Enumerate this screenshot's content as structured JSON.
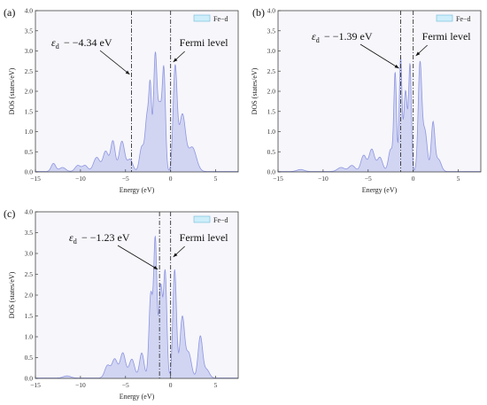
{
  "chart_data": [
    {
      "type": "area",
      "panel": "(a)",
      "legend": "Fe−d",
      "xlabel": "Energy (eV)",
      "ylabel": "DOS (states/eV)",
      "xlim": [
        -15,
        7.5
      ],
      "ylim": [
        0,
        4.0
      ],
      "xticks": [
        "−15",
        "−10",
        "−5",
        "0",
        "5"
      ],
      "yticks": [
        "0.0",
        "0.5",
        "1.0",
        "1.5",
        "2.0",
        "2.5",
        "3.0",
        "3.5",
        "4.0"
      ],
      "d_band_center": -4.34,
      "d_band_label": "− −4.34 eV",
      "fermi_label": "Fermi level",
      "fermi_level": 0,
      "peaks": [
        [
          -13.0,
          0.2,
          0.25
        ],
        [
          -12.0,
          0.1,
          0.35
        ],
        [
          -10.3,
          0.15,
          0.3
        ],
        [
          -9.5,
          0.15,
          0.3
        ],
        [
          -8.2,
          0.35,
          0.35
        ],
        [
          -7.2,
          0.5,
          0.3
        ],
        [
          -6.4,
          0.75,
          0.25
        ],
        [
          -5.4,
          0.75,
          0.3
        ],
        [
          -4.5,
          0.3,
          0.3
        ],
        [
          -3.2,
          0.6,
          0.25
        ],
        [
          -2.6,
          1.35,
          0.22
        ],
        [
          -2.25,
          1.8,
          0.15
        ],
        [
          -1.7,
          2.9,
          0.2
        ],
        [
          -1.2,
          1.5,
          0.2
        ],
        [
          -0.75,
          2.5,
          0.18
        ],
        [
          0.5,
          2.55,
          0.22
        ],
        [
          1.3,
          1.4,
          0.35
        ],
        [
          2.4,
          0.6,
          0.45
        ]
      ]
    },
    {
      "type": "area",
      "panel": "(b)",
      "legend": "Fe−d",
      "xlabel": "Energy (eV)",
      "ylabel": "DOS (states/eV)",
      "xlim": [
        -15,
        7.5
      ],
      "ylim": [
        0,
        4.0
      ],
      "xticks": [
        "−15",
        "−10",
        "−5",
        "0",
        "5"
      ],
      "yticks": [
        "0.0",
        "0.5",
        "1.0",
        "1.5",
        "2.0",
        "2.5",
        "3.0",
        "3.5",
        "4.0"
      ],
      "d_band_center": -1.39,
      "d_band_label": "− −1.39 eV",
      "fermi_label": "Fermi level",
      "fermi_level": 0,
      "peaks": [
        [
          -12.5,
          0.05,
          0.4
        ],
        [
          -8.0,
          0.1,
          0.4
        ],
        [
          -6.8,
          0.15,
          0.35
        ],
        [
          -5.5,
          0.4,
          0.3
        ],
        [
          -4.6,
          0.55,
          0.3
        ],
        [
          -3.7,
          0.35,
          0.3
        ],
        [
          -2.5,
          0.55,
          0.25
        ],
        [
          -2.0,
          2.4,
          0.15
        ],
        [
          -1.4,
          2.8,
          0.15
        ],
        [
          -0.85,
          2.0,
          0.2
        ],
        [
          -0.35,
          2.6,
          0.15
        ],
        [
          0.75,
          2.65,
          0.2
        ],
        [
          1.3,
          1.0,
          0.25
        ],
        [
          2.2,
          1.2,
          0.2
        ],
        [
          2.8,
          0.3,
          0.3
        ]
      ]
    },
    {
      "type": "area",
      "panel": "(c)",
      "legend": "Fe−d",
      "xlabel": "Energy (eV)",
      "ylabel": "DOS (states/eV)",
      "xlim": [
        -15,
        7.5
      ],
      "ylim": [
        0,
        4.0
      ],
      "xticks": [
        "−15",
        "−10",
        "−5",
        "0",
        "5"
      ],
      "yticks": [
        "0.0",
        "0.5",
        "1.0",
        "1.5",
        "2.0",
        "2.5",
        "3.0",
        "3.5",
        "4.0"
      ],
      "d_band_center": -1.23,
      "d_band_label": "− −1.23 eV",
      "fermi_label": "Fermi level",
      "fermi_level": 0,
      "peaks": [
        [
          -11.5,
          0.05,
          0.4
        ],
        [
          -7.0,
          0.3,
          0.3
        ],
        [
          -6.2,
          0.45,
          0.3
        ],
        [
          -5.3,
          0.6,
          0.3
        ],
        [
          -4.3,
          0.45,
          0.3
        ],
        [
          -3.2,
          0.6,
          0.25
        ],
        [
          -2.2,
          2.0,
          0.2
        ],
        [
          -1.7,
          3.3,
          0.18
        ],
        [
          -1.1,
          2.2,
          0.2
        ],
        [
          -0.6,
          2.5,
          0.18
        ],
        [
          0.45,
          2.6,
          0.2
        ],
        [
          1.3,
          1.45,
          0.25
        ],
        [
          2.0,
          0.6,
          0.3
        ],
        [
          3.3,
          1.0,
          0.25
        ],
        [
          4.0,
          0.2,
          0.3
        ]
      ]
    }
  ],
  "colors": {
    "fill": "#c4c9ef",
    "line": "#8f96e0",
    "legend_fill": "#cdeefa",
    "legend_edge": "#6fb9d9",
    "dashed": "#333333"
  }
}
